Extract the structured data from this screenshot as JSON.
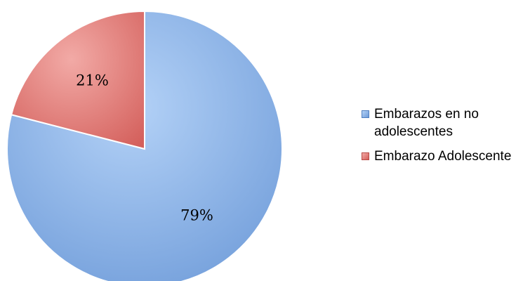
{
  "chart_data": {
    "type": "pie",
    "slices": [
      {
        "label": "Embarazos en no adolescentes",
        "value": 79,
        "display": "79%",
        "color": "#7aa7e0"
      },
      {
        "label": "Embarazo Adolescente",
        "value": 21,
        "display": "21%",
        "color": "#e07470"
      }
    ],
    "legend_position": "right"
  }
}
